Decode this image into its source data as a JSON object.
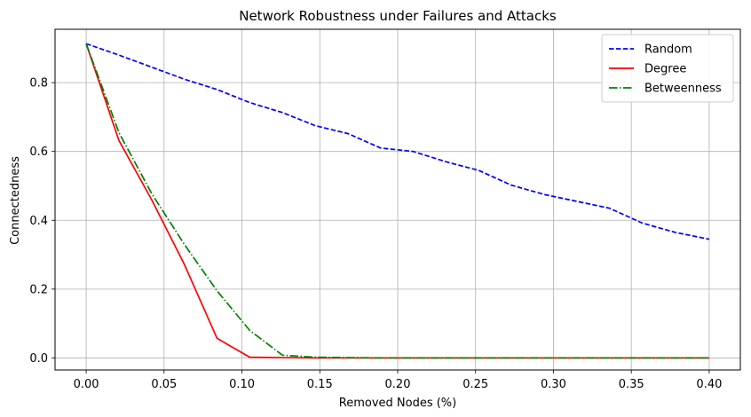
{
  "chart_data": {
    "type": "line",
    "title": "Network Robustness under Failures and Attacks",
    "xlabel": "Removed Nodes (%)",
    "ylabel": "Connectedness",
    "x": [
      0.0,
      0.021,
      0.042,
      0.063,
      0.084,
      0.105,
      0.126,
      0.147,
      0.168,
      0.189,
      0.21,
      0.231,
      0.252,
      0.273,
      0.294,
      0.315,
      0.336,
      0.357,
      0.378,
      0.4
    ],
    "xlim": [
      -0.02,
      0.42
    ],
    "ylim": [
      -0.035,
      0.955
    ],
    "xticks": [
      0.0,
      0.05,
      0.1,
      0.15,
      0.2,
      0.25,
      0.3,
      0.35,
      0.4
    ],
    "xtick_labels": [
      "0.00",
      "0.05",
      "0.10",
      "0.15",
      "0.20",
      "0.25",
      "0.30",
      "0.35",
      "0.40"
    ],
    "yticks": [
      0.0,
      0.2,
      0.4,
      0.6,
      0.8
    ],
    "ytick_labels": [
      "0.0",
      "0.2",
      "0.4",
      "0.6",
      "0.8"
    ],
    "grid": true,
    "legend_position": "top-right",
    "series": [
      {
        "name": "Random",
        "color": "#0000ff",
        "style": "dashed",
        "values": [
          0.913,
          0.88,
          0.845,
          0.81,
          0.78,
          0.742,
          0.713,
          0.675,
          0.652,
          0.61,
          0.6,
          0.57,
          0.545,
          0.502,
          0.475,
          0.455,
          0.435,
          0.392,
          0.365,
          0.345
        ]
      },
      {
        "name": "Degree",
        "color": "#ff0000",
        "style": "solid",
        "values": [
          0.913,
          0.632,
          0.46,
          0.272,
          0.057,
          0.002,
          0.001,
          0.0,
          0.0,
          0.0,
          0.0,
          0.0,
          0.0,
          0.0,
          0.0,
          0.0,
          0.0,
          0.0,
          0.0,
          0.0
        ]
      },
      {
        "name": "Betweenness",
        "color": "#008000",
        "style": "dashdot",
        "values": [
          0.913,
          0.655,
          0.478,
          0.33,
          0.195,
          0.08,
          0.008,
          0.002,
          0.001,
          0.0,
          0.0,
          0.0,
          0.0,
          0.0,
          0.0,
          0.0,
          0.0,
          0.0,
          0.0,
          0.0
        ]
      }
    ]
  }
}
